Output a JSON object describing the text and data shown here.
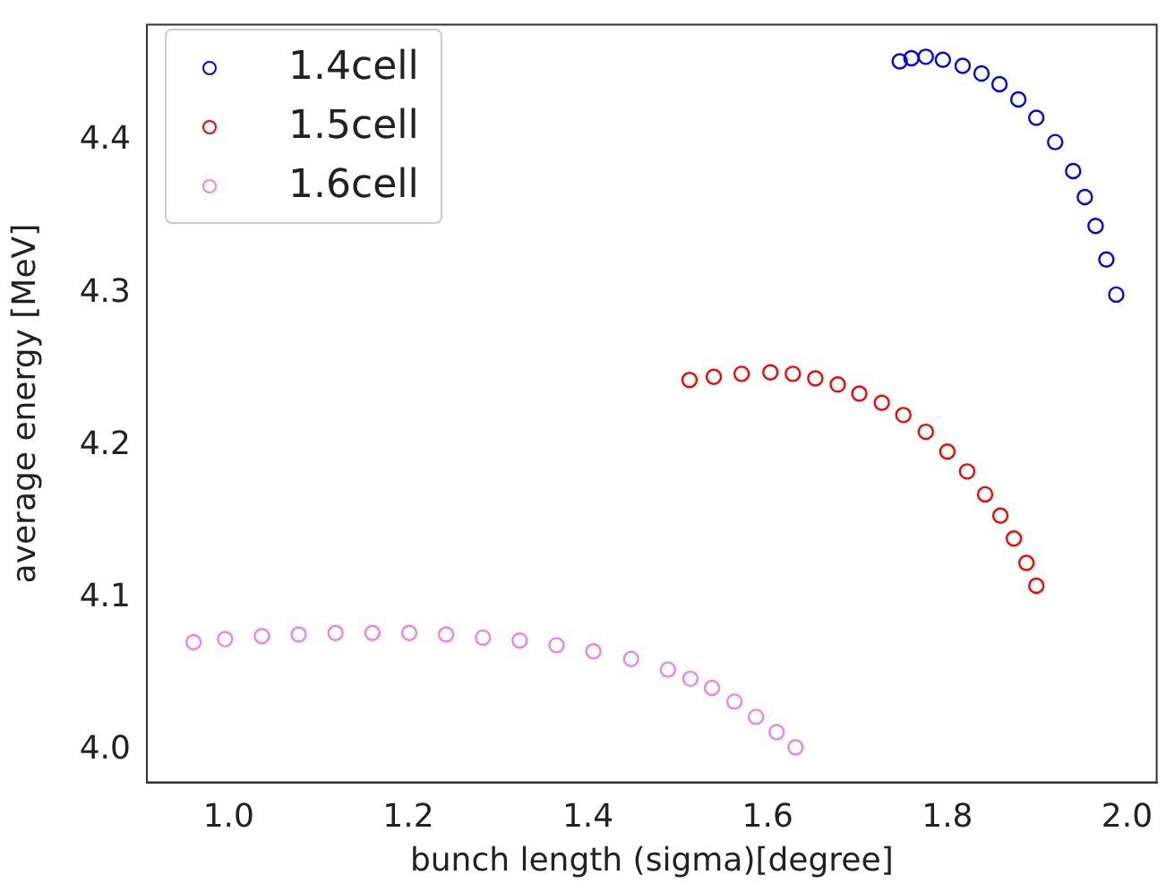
{
  "chart_data": {
    "type": "scatter",
    "xlabel": "bunch length (sigma)[degree]",
    "ylabel": "average energy [MeV]",
    "xlim": [
      0.909,
      2.033
    ],
    "ylim": [
      3.979,
      4.476
    ],
    "xticks": [
      {
        "value": 1.0,
        "label": "1.0"
      },
      {
        "value": 1.2,
        "label": "1.2"
      },
      1.4,
      1.6,
      1.8,
      {
        "value": 2.0,
        "label": "2.0"
      }
    ],
    "yticks": [
      {
        "value": 4.0,
        "label": "4.0"
      },
      4.1,
      4.2,
      4.3,
      4.4
    ],
    "grid": false,
    "legend": "top left",
    "marker": "circle",
    "series": [
      {
        "name": "1.4cell",
        "color": "#0000ff",
        "x": [
          1.747,
          1.76,
          1.776,
          1.795,
          1.817,
          1.838,
          1.858,
          1.879,
          1.899,
          1.92,
          1.94,
          1.953,
          1.965,
          1.977,
          1.988
        ],
        "values": [
          4.452,
          4.454,
          4.455,
          4.453,
          4.449,
          4.444,
          4.437,
          4.427,
          4.415,
          4.399,
          4.38,
          4.363,
          4.344,
          4.322,
          4.299
        ]
      },
      {
        "name": "1.5cell",
        "color": "#ff0000",
        "x": [
          1.513,
          1.54,
          1.571,
          1.603,
          1.628,
          1.653,
          1.678,
          1.702,
          1.727,
          1.751,
          1.776,
          1.8,
          1.822,
          1.842,
          1.859,
          1.874,
          1.888,
          1.899
        ],
        "values": [
          4.243,
          4.245,
          4.247,
          4.248,
          4.247,
          4.244,
          4.24,
          4.234,
          4.228,
          4.22,
          4.209,
          4.196,
          4.183,
          4.168,
          4.154,
          4.139,
          4.123,
          4.108
        ]
      },
      {
        "name": "1.6cell",
        "color": "#ee82ee",
        "x": [
          0.961,
          0.996,
          1.037,
          1.078,
          1.119,
          1.16,
          1.201,
          1.242,
          1.283,
          1.324,
          1.365,
          1.406,
          1.448,
          1.489,
          1.514,
          1.538,
          1.563,
          1.587,
          1.61,
          1.631
        ],
        "values": [
          4.071,
          4.073,
          4.075,
          4.076,
          4.077,
          4.077,
          4.077,
          4.076,
          4.074,
          4.072,
          4.069,
          4.065,
          4.06,
          4.053,
          4.047,
          4.041,
          4.032,
          4.022,
          4.012,
          4.002
        ]
      }
    ]
  }
}
